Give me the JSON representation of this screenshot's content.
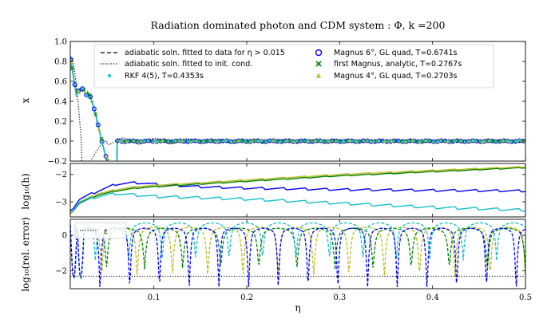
{
  "chart_data": {
    "type": "line",
    "title": "Radiation dominated photon and CDM system : Φ, k =200",
    "xlabel": "η",
    "xlim": [
      0.01,
      0.5
    ],
    "xticks": [
      "0.1",
      "0.2",
      "0.3",
      "0.4",
      "0.5"
    ],
    "panels": [
      {
        "ylabel": "x",
        "ylim": [
          -0.2,
          1.0
        ],
        "yticks": [
          "−0.2",
          "0.0",
          "0.2",
          "0.4",
          "0.6",
          "0.8",
          "1.0"
        ],
        "legend": {
          "placement": "top",
          "entries": [
            {
              "label": "adiabatic soln. fitted to data for η > 0.015",
              "color": "#000000",
              "style": "dashed"
            },
            {
              "label": "adiabatic soln. fitted to init. cond.",
              "color": "#000000",
              "style": "dotted"
            },
            {
              "label": "RKF 4(5), T=0.4353s",
              "color": "#17becf",
              "style": "dot"
            },
            {
              "label": "Magnus 6°, GL quad, T=0.6741s",
              "color": "#0000ff",
              "style": "circle"
            },
            {
              "label": "first Magnus, analytic, T=0.2767s",
              "color": "#008000",
              "style": "x"
            },
            {
              "label": "Magnus 4°, GL quad, T=0.2703s",
              "color": "#bcbd22",
              "style": "triangle"
            }
          ]
        }
      },
      {
        "ylabel": "log₁₀(h)",
        "ylim": [
          -3.55,
          -1.6
        ],
        "yticks": [
          "−2",
          "−3"
        ],
        "series": [
          {
            "color": "#0000ff",
            "x": [
              0.01,
              0.02,
              0.04,
              0.06,
              0.08,
              0.1,
              0.15,
              0.2,
              0.3,
              0.4,
              0.5
            ],
            "y": [
              -3.35,
              -2.9,
              -2.6,
              -2.35,
              -2.3,
              -2.35,
              -2.45,
              -2.5,
              -2.55,
              -2.58,
              -2.6
            ]
          },
          {
            "color": "#008000",
            "x": [
              0.01,
              0.02,
              0.04,
              0.06,
              0.08,
              0.1,
              0.15,
              0.2,
              0.3,
              0.4,
              0.5
            ],
            "y": [
              -3.45,
              -3.05,
              -2.75,
              -2.6,
              -2.5,
              -2.45,
              -2.35,
              -2.25,
              -2.05,
              -1.9,
              -1.75
            ]
          },
          {
            "color": "#bcbd22",
            "x": [
              0.01,
              0.02,
              0.04,
              0.06,
              0.08,
              0.1,
              0.15,
              0.2,
              0.3,
              0.4,
              0.5
            ],
            "y": [
              -3.45,
              -3.0,
              -2.7,
              -2.55,
              -2.45,
              -2.4,
              -2.3,
              -2.2,
              -2.0,
              -1.85,
              -1.72
            ]
          },
          {
            "color": "#17becf",
            "x": [
              0.01,
              0.02,
              0.04,
              0.06,
              0.08,
              0.1,
              0.15,
              0.2,
              0.3,
              0.4,
              0.5
            ],
            "y": [
              -3.4,
              -3.0,
              -2.8,
              -2.7,
              -2.75,
              -2.8,
              -2.85,
              -2.9,
              -3.05,
              -3.2,
              -3.3
            ]
          }
        ]
      },
      {
        "ylabel": "log₁₀(rel. error)",
        "ylim": [
          -3.0,
          0.9
        ],
        "yticks": [
          "−2",
          "0"
        ],
        "legend": {
          "placement": "top-left",
          "entries": [
            {
              "label": "ε",
              "color": "#000000",
              "style": "dotted"
            }
          ]
        },
        "epsilon": -2.3
      }
    ]
  }
}
